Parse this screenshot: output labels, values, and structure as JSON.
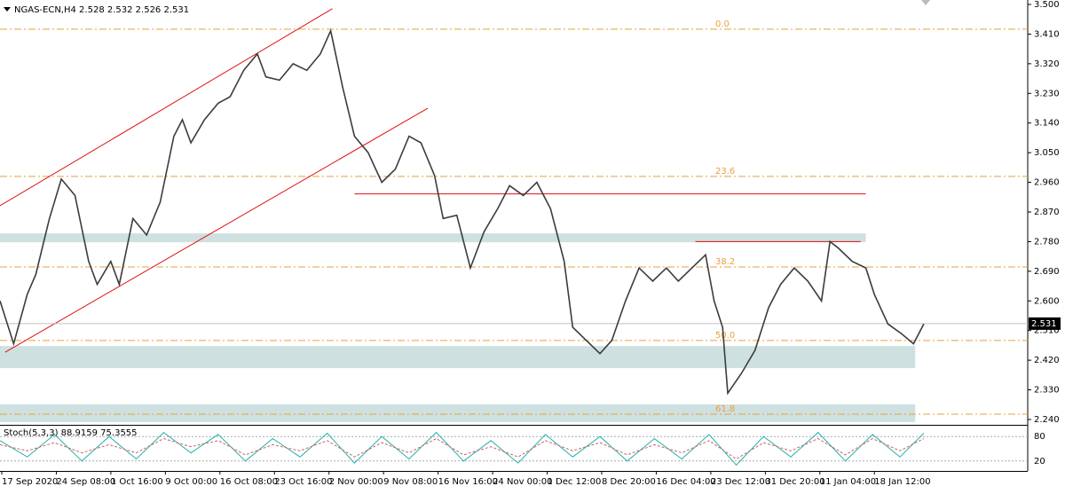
{
  "chart_data": [
    {
      "type": "line",
      "title": "NGAS-ECN,H4  2.528 2.532 2.526 2.531",
      "x": [
        0,
        8,
        16,
        21,
        29,
        36,
        44,
        52,
        57,
        65,
        70,
        78,
        86,
        94,
        102,
        107,
        112,
        120,
        128,
        135,
        143,
        151,
        156,
        164,
        172,
        180,
        188,
        194,
        201,
        208,
        216,
        224,
        232,
        240,
        247,
        255,
        260,
        268,
        276,
        284,
        292,
        299,
        307,
        315,
        323,
        331,
        336,
        344,
        352,
        359,
        367,
        375,
        383,
        391,
        398,
        406,
        414,
        419,
        424,
        427,
        435,
        443,
        451,
        458,
        466,
        474,
        482,
        487,
        492,
        500,
        508,
        513,
        521,
        529,
        536,
        542
      ],
      "values": [
        2.6,
        2.47,
        2.62,
        2.68,
        2.85,
        2.97,
        2.92,
        2.72,
        2.65,
        2.72,
        2.65,
        2.85,
        2.8,
        2.9,
        3.1,
        3.15,
        3.08,
        3.15,
        3.2,
        3.22,
        3.3,
        3.35,
        3.28,
        3.27,
        3.32,
        3.3,
        3.35,
        3.42,
        3.25,
        3.1,
        3.05,
        2.96,
        3.0,
        3.1,
        3.08,
        2.98,
        2.85,
        2.86,
        2.7,
        2.81,
        2.88,
        2.95,
        2.92,
        2.96,
        2.88,
        2.72,
        2.52,
        2.48,
        2.44,
        2.48,
        2.6,
        2.7,
        2.66,
        2.7,
        2.66,
        2.7,
        2.74,
        2.6,
        2.52,
        2.32,
        2.38,
        2.45,
        2.58,
        2.65,
        2.7,
        2.66,
        2.6,
        2.78,
        2.76,
        2.72,
        2.7,
        2.62,
        2.53,
        2.5,
        2.47,
        2.53
      ],
      "color": "#3c3c3c",
      "xlim": [
        0,
        603
      ],
      "ylim": [
        2.2265,
        3.5135
      ],
      "yticks": [
        {
          "value": 3.5,
          "label": "3.500"
        },
        {
          "value": 3.41,
          "label": "3.410"
        },
        {
          "value": 3.32,
          "label": "3.320"
        },
        {
          "value": 3.23,
          "label": "3.230"
        },
        {
          "value": 3.14,
          "label": "3.140"
        },
        {
          "value": 3.05,
          "label": "3.050"
        },
        {
          "value": 2.96,
          "label": "2.960"
        },
        {
          "value": 2.87,
          "label": "2.870"
        },
        {
          "value": 2.78,
          "label": "2.780"
        },
        {
          "value": 2.69,
          "label": "2.690"
        },
        {
          "value": 2.6,
          "label": "2.600"
        },
        {
          "value": 2.51,
          "label": "2.510"
        },
        {
          "value": 2.42,
          "label": "2.420"
        },
        {
          "value": 2.33,
          "label": "2.330"
        },
        {
          "value": 2.24,
          "label": "2.240"
        }
      ],
      "xticks": [
        {
          "value": 0,
          "label": "17 Sep 2020"
        },
        {
          "value": 32,
          "label": "24 Sep 08:00"
        },
        {
          "value": 64,
          "label": "1 Oct 16:00"
        },
        {
          "value": 96,
          "label": "9 Oct 00:00"
        },
        {
          "value": 128,
          "label": "16 Oct 08:00"
        },
        {
          "value": 160,
          "label": "23 Oct 16:00"
        },
        {
          "value": 192,
          "label": "2 Nov 00:00"
        },
        {
          "value": 224,
          "label": "9 Nov 08:00"
        },
        {
          "value": 256,
          "label": "16 Nov 16:00"
        },
        {
          "value": 288,
          "label": "24 Nov 00:00"
        },
        {
          "value": 320,
          "label": "1 Dec 12:00"
        },
        {
          "value": 352,
          "label": "8 Dec 20:00"
        },
        {
          "value": 384,
          "label": "16 Dec 04:00"
        },
        {
          "value": 416,
          "label": "23 Dec 12:00"
        },
        {
          "value": 448,
          "label": "31 Dec 20:00"
        },
        {
          "value": 480,
          "label": "11 Jan 04:00"
        },
        {
          "value": 512,
          "label": "18 Jan 12:00"
        }
      ],
      "current_price": {
        "value": 2.531,
        "label": "2.531"
      },
      "fib_color": "#e8a040",
      "fib_levels": [
        {
          "value": 3.425,
          "label": "0.0"
        },
        {
          "value": 2.978,
          "label": "23.6"
        },
        {
          "value": 2.703,
          "label": "38.2"
        },
        {
          "value": 2.48,
          "label": "50.0"
        },
        {
          "value": 2.256,
          "label": "61.8"
        }
      ],
      "zones": [
        {
          "color": "#cfe0e1",
          "x": [
            0,
            508
          ],
          "y": [
            2.778,
            2.805
          ]
        },
        {
          "color": "#cfe0e1",
          "x": [
            0,
            537
          ],
          "y": [
            2.396,
            2.463
          ]
        },
        {
          "color": "#cfe0e1",
          "x": [
            0,
            537
          ],
          "y": [
            2.232,
            2.286
          ]
        }
      ],
      "trend_lines": [
        {
          "color": "#e01010",
          "x": [
            0,
            195
          ],
          "y": [
            2.889,
            3.487
          ]
        },
        {
          "color": "#e01010",
          "x": [
            3,
            251
          ],
          "y": [
            2.444,
            3.185
          ]
        },
        {
          "color": "#e01010",
          "x": [
            208,
            508
          ],
          "y": [
            2.925,
            2.925
          ]
        },
        {
          "color": "#e01010",
          "x": [
            408,
            505
          ],
          "y": [
            2.78,
            2.78
          ]
        }
      ]
    },
    {
      "type": "stochastic",
      "title": "Stoch(5,3,3) 88.9159 75.3555",
      "x": [
        0,
        16,
        32,
        48,
        64,
        80,
        96,
        112,
        128,
        144,
        160,
        176,
        192,
        208,
        224,
        240,
        256,
        272,
        288,
        304,
        320,
        336,
        352,
        368,
        384,
        400,
        416,
        432,
        448,
        464,
        480,
        496,
        512,
        528,
        542
      ],
      "series": [
        {
          "color": "#20b2aa",
          "values": [
            70,
            30,
            85,
            20,
            80,
            25,
            90,
            40,
            85,
            20,
            75,
            30,
            88,
            15,
            80,
            25,
            90,
            20,
            70,
            15,
            85,
            30,
            80,
            20,
            75,
            25,
            85,
            10,
            80,
            30,
            90,
            20,
            85,
            30,
            88
          ]
        },
        {
          "color": "#d06060",
          "values": [
            60,
            45,
            65,
            40,
            60,
            40,
            75,
            55,
            70,
            35,
            60,
            45,
            70,
            30,
            65,
            40,
            75,
            35,
            55,
            30,
            70,
            45,
            65,
            35,
            60,
            40,
            70,
            25,
            65,
            45,
            75,
            35,
            75,
            45,
            75
          ]
        }
      ],
      "xlim": [
        0,
        603
      ],
      "ylim": [
        0,
        100
      ],
      "yticks": [
        20,
        80
      ]
    }
  ]
}
